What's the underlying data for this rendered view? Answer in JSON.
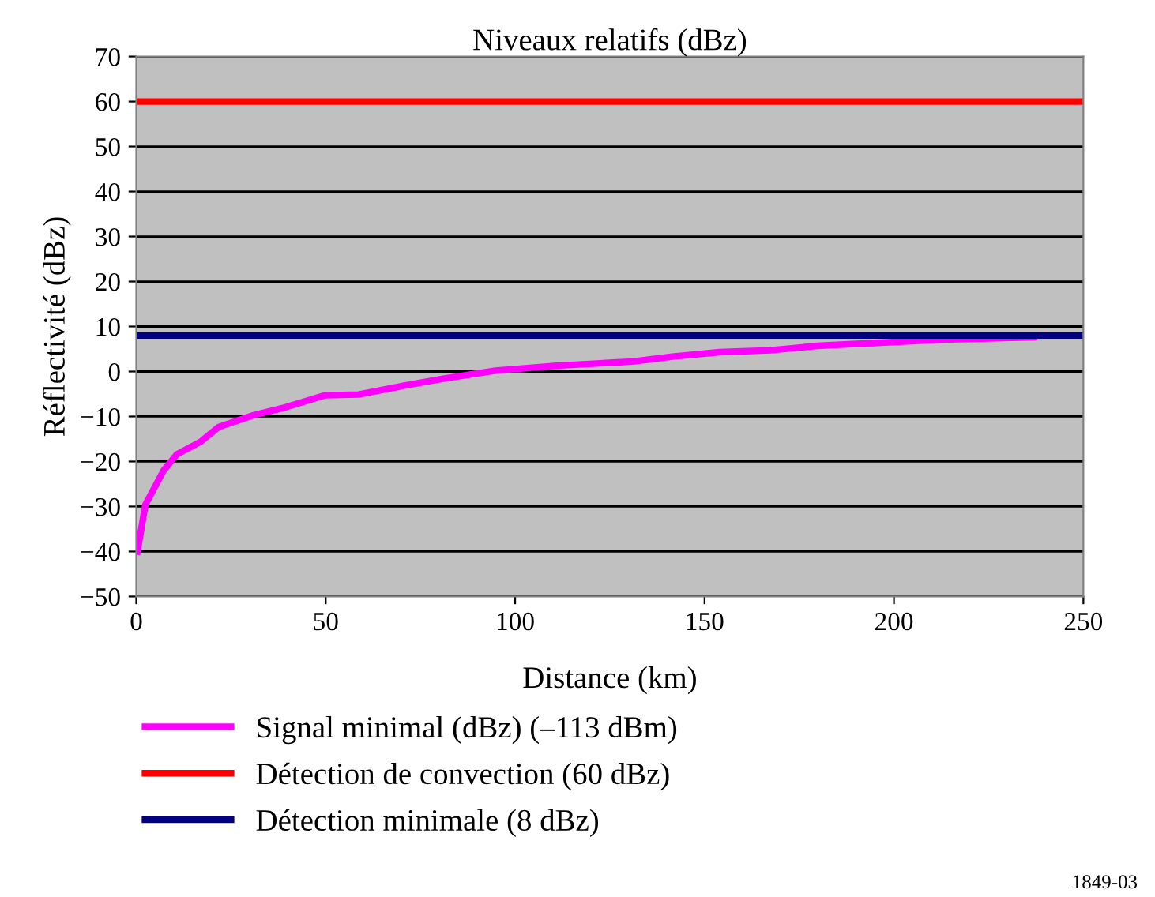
{
  "chart_data": {
    "type": "line",
    "title": "Niveaux relatifs (dBz)",
    "xlabel": "Distance (km)",
    "ylabel": "Réflectivité (dBz)",
    "xlim": [
      0,
      250
    ],
    "xticks": [
      0,
      50,
      100,
      150,
      200,
      250
    ],
    "ylim": [
      -50,
      70
    ],
    "yticks": [
      {
        "value": -50,
        "label": "−50"
      },
      {
        "value": -40,
        "label": "−40"
      },
      {
        "value": -30,
        "label": "−30"
      },
      {
        "value": -20,
        "label": "−20"
      },
      {
        "value": -10,
        "label": "−10"
      },
      0,
      10,
      20,
      30,
      40,
      50,
      60,
      70
    ],
    "grid": "y",
    "legend": "bottom",
    "marker": "none",
    "line_style": "solid",
    "series": [
      {
        "name": "Signal minimal (dBz) (–113 dBm)",
        "color": "#ff00ff",
        "x": [
          0.3,
          2.4,
          7.2,
          10.7,
          17,
          21.8,
          31,
          39.2,
          49.7,
          58.7,
          69.7,
          81,
          94.8,
          111,
          131,
          141.5,
          154,
          167.3,
          179.7,
          196.4,
          213,
          237
        ],
        "values": [
          -40,
          -29.6,
          -22,
          -18.4,
          -15.6,
          -12.3,
          -9.7,
          -8,
          -5.3,
          -5.1,
          -3.3,
          -1.6,
          0.2,
          1.3,
          2.2,
          3.3,
          4.3,
          4.7,
          5.7,
          6.4,
          7.1,
          7.6
        ]
      },
      {
        "name": "Détection de convection (60 dBz)",
        "color": "#ff0000",
        "x": [
          0,
          250
        ],
        "values": [
          60,
          60
        ]
      },
      {
        "name": "Détection minimale (8 dBz)",
        "color": "#000080",
        "x": [
          0,
          250
        ],
        "values": [
          8,
          8
        ]
      }
    ],
    "annotations": [
      "1849-03"
    ]
  }
}
